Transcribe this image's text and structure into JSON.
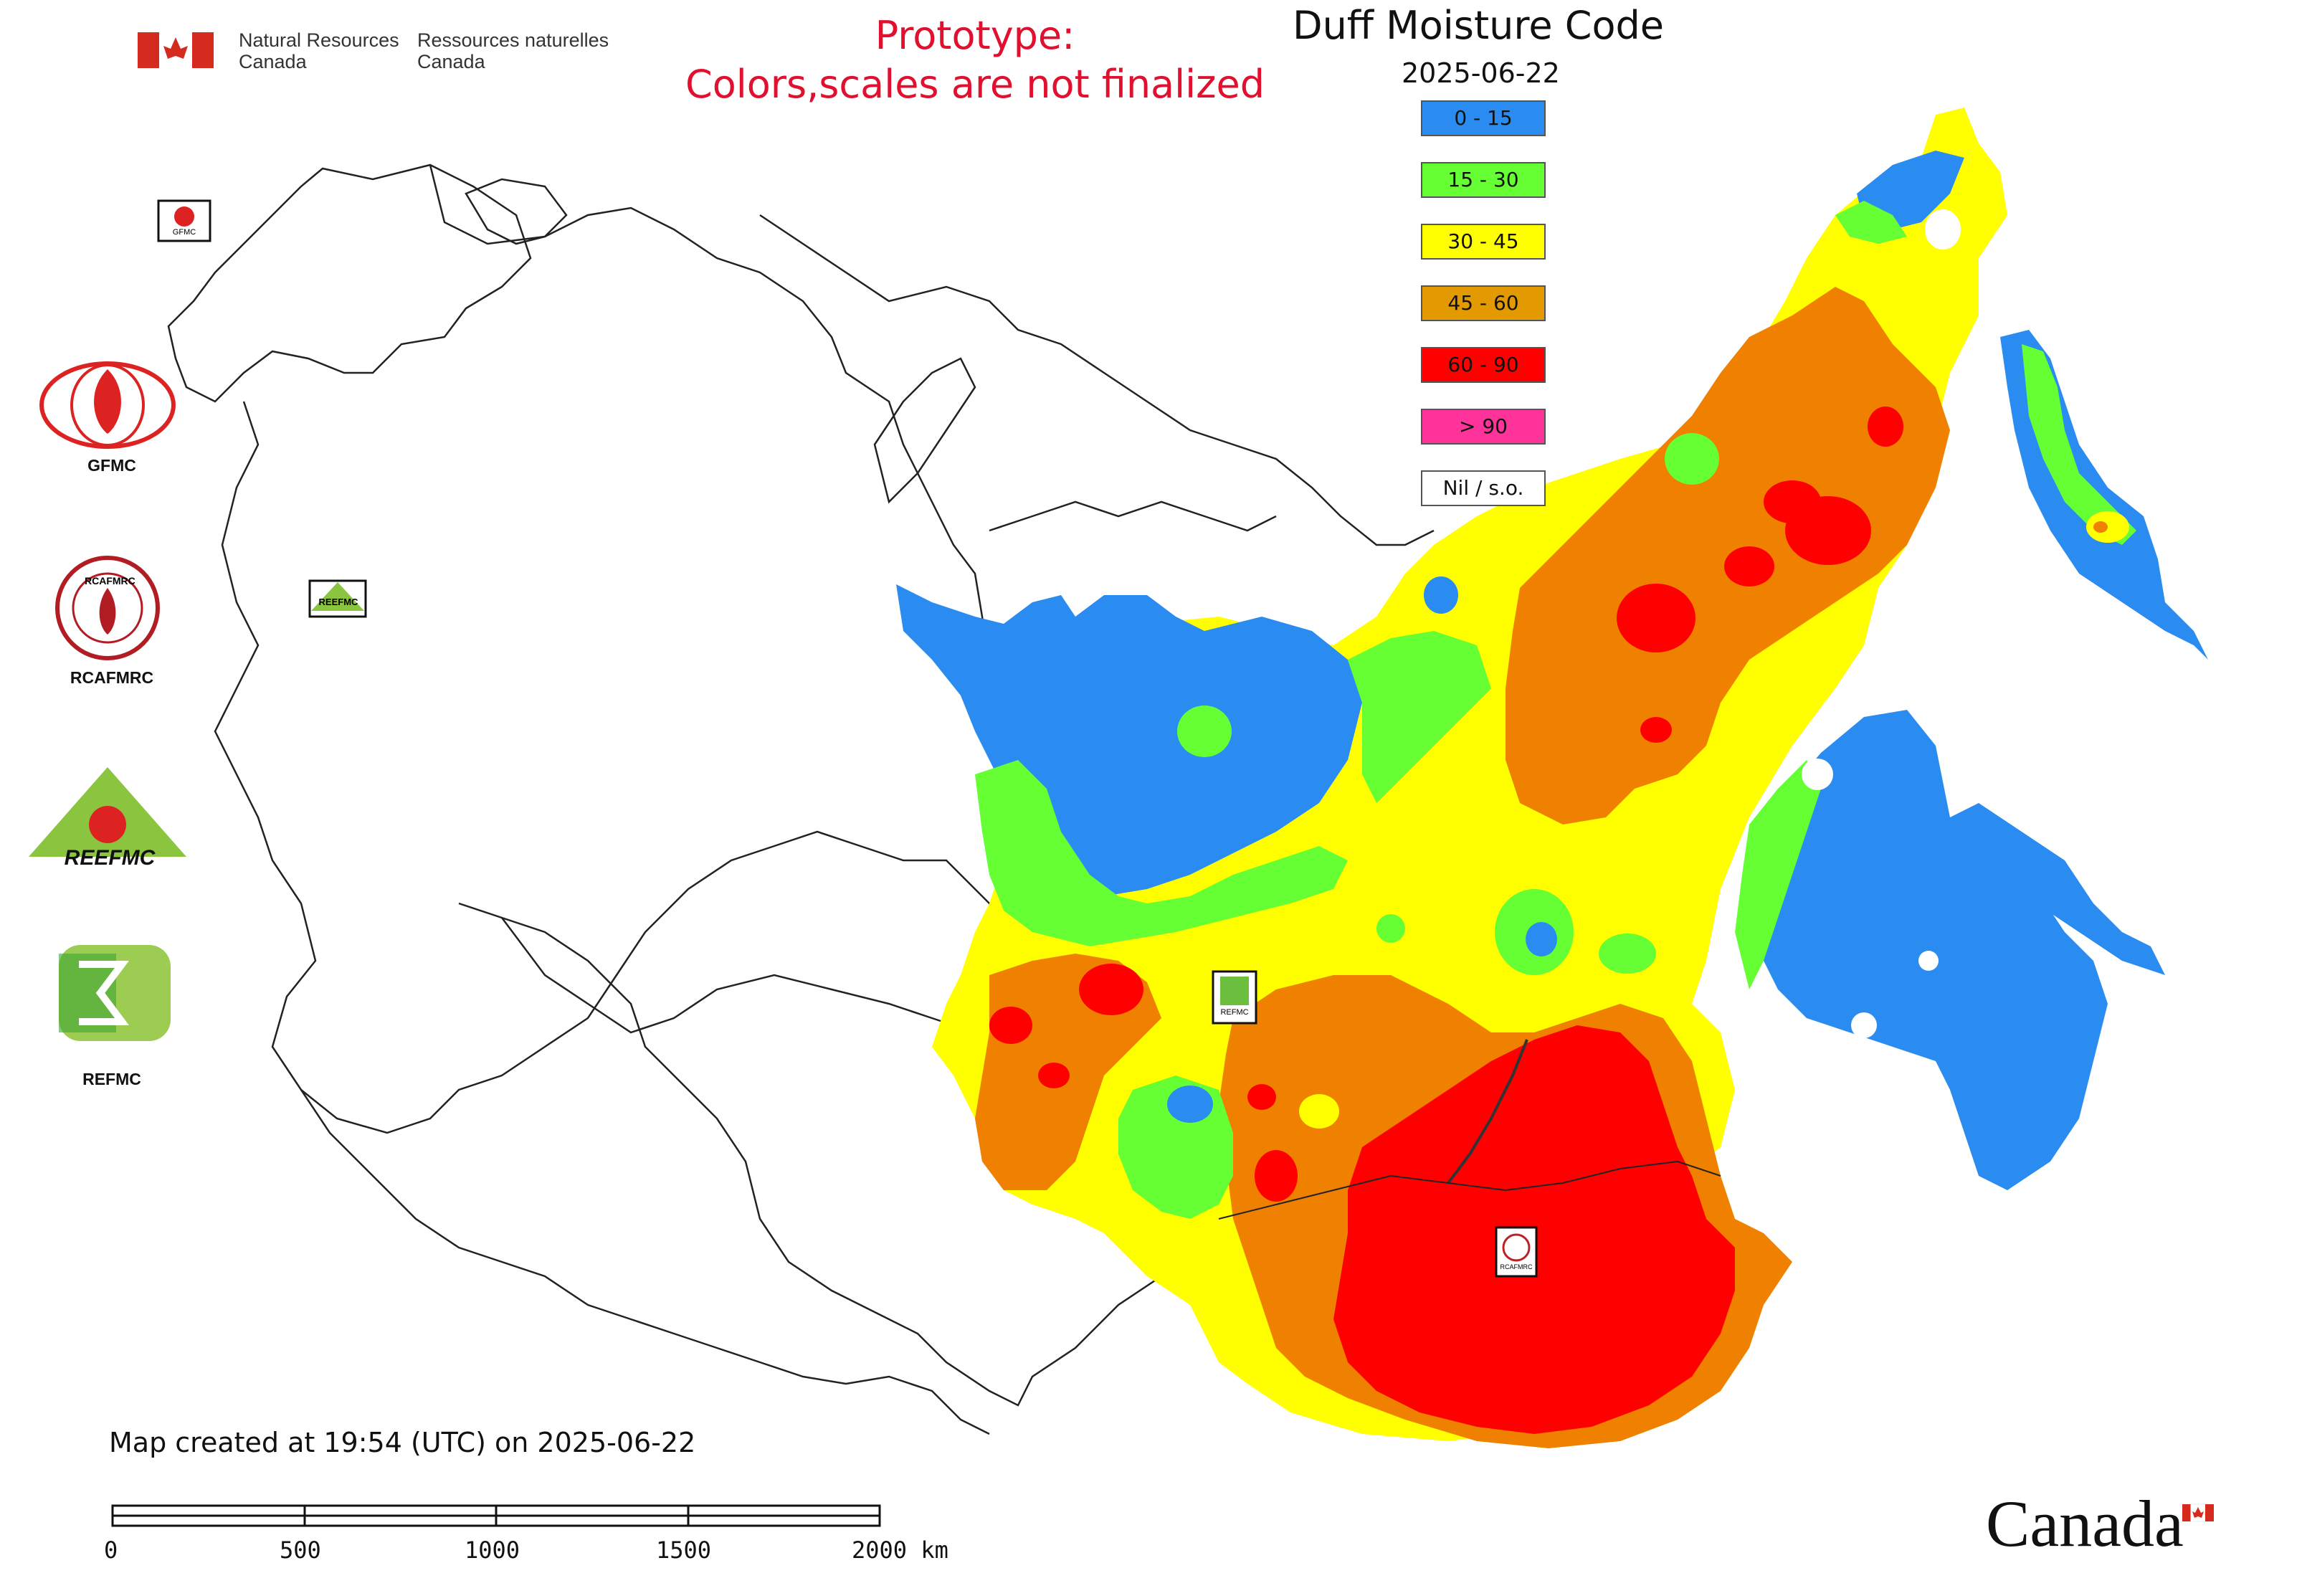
{
  "header": {
    "org_en_line1": "Natural Resources",
    "org_en_line2": "Canada",
    "org_fr_line1": "Ressources naturelles",
    "org_fr_line2": "Canada"
  },
  "notice": {
    "line1": "Prototype:",
    "line2": "Colors,scales are not finalized",
    "color": "#e0102e"
  },
  "map_title": "Duff Moisture Code",
  "map_date": "2025-06-22",
  "legend": [
    {
      "label": "0 - 15",
      "color": "#2a8cf0"
    },
    {
      "label": "15 - 30",
      "color": "#66ff33"
    },
    {
      "label": "30 - 45",
      "color": "#ffff00"
    },
    {
      "label": "45 - 60",
      "color": "#e39a00"
    },
    {
      "label": "60 - 90",
      "color": "#ff0000"
    },
    {
      "label": "> 90",
      "color": "#ff3399"
    },
    {
      "label": "Nil / s.o.",
      "color": "#ffffff"
    }
  ],
  "logos": {
    "gfmc": "GFMC",
    "rcafmrc": "RCAFMRC",
    "reefmc_mark": "REEFMC",
    "refmc": "REFMC",
    "map_marker_gfmc": "GFMC",
    "map_marker_reefmc": "REEFMC",
    "map_marker_refmc": "REFMC",
    "map_marker_rcafmrc": "RCAFMRC"
  },
  "footer": {
    "created": "Map created at 19:54 (UTC) on 2025-06-22",
    "scale_ticks": [
      "0",
      "500",
      "1000",
      "1500",
      "2000 km"
    ],
    "wordmark": "Canada"
  }
}
